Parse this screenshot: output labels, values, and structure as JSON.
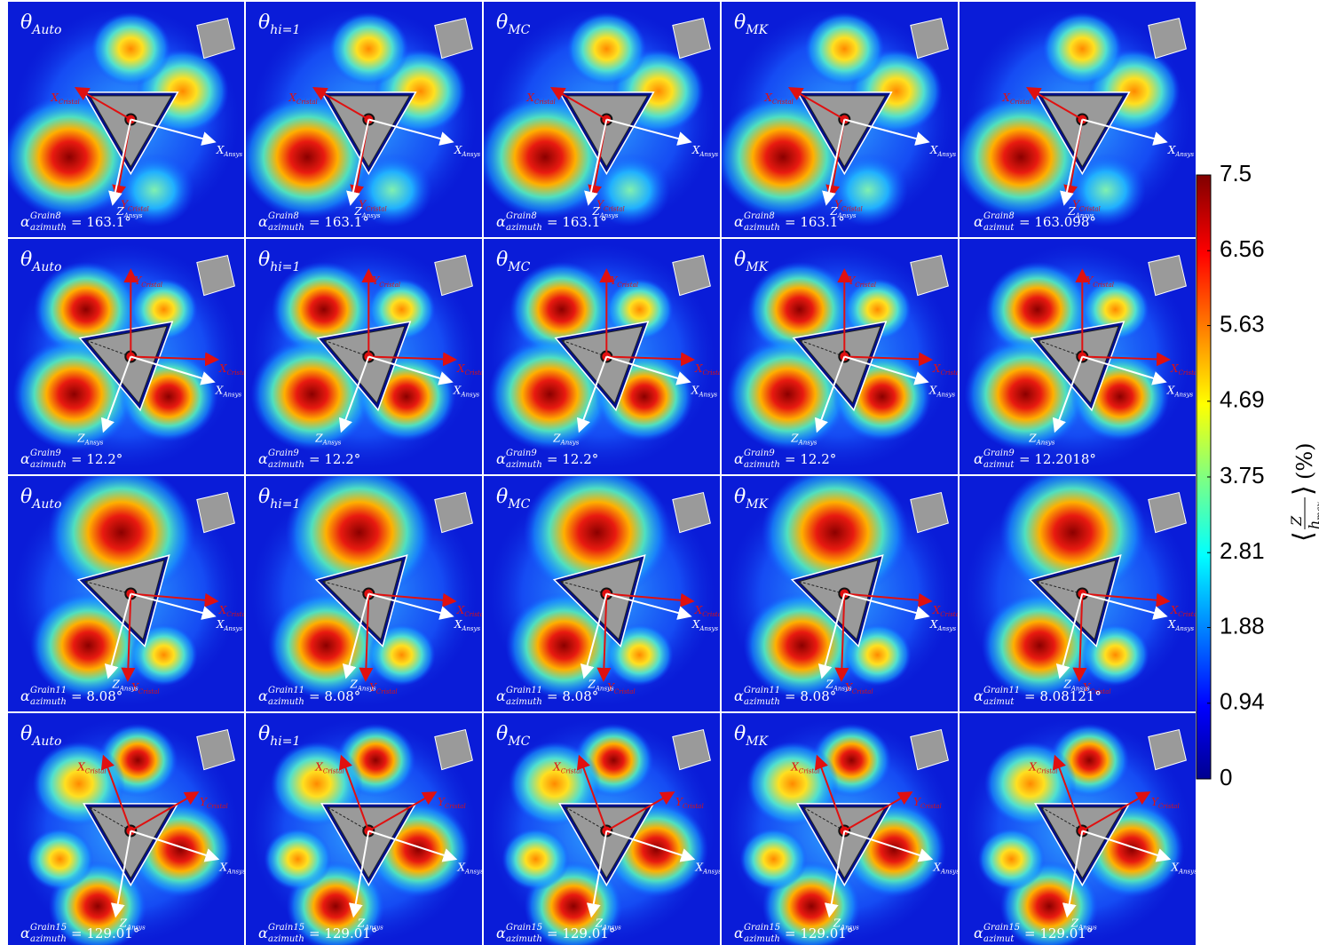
{
  "figure": {
    "rows": [
      {
        "panels": [
          {
            "method": {
              "symbol": "θ",
              "sub": "Auto"
            },
            "angle": {
              "symbol": "α",
              "sup": "Grain8",
              "sub": "azimuth",
              "value": "= 163.1°"
            }
          },
          {
            "method": {
              "symbol": "θ",
              "sub": "hi=1"
            },
            "angle": {
              "symbol": "α",
              "sup": "Grain8",
              "sub": "azimuth",
              "value": "= 163.1°"
            }
          },
          {
            "method": {
              "symbol": "θ",
              "sub": "MC"
            },
            "angle": {
              "symbol": "α",
              "sup": "Grain8",
              "sub": "azimuth",
              "value": "= 163.1°"
            }
          },
          {
            "method": {
              "symbol": "θ",
              "sub": "MK"
            },
            "angle": {
              "symbol": "α",
              "sup": "Grain8",
              "sub": "azimuth",
              "value": "= 163.1°"
            }
          },
          {
            "angle": {
              "symbol": "α",
              "sup": "Grain8",
              "sub": "azimut",
              "value": "= 163.098°"
            }
          }
        ],
        "arrows": [
          {
            "symbol": "X",
            "sub": "Cristal"
          },
          {
            "symbol": "X",
            "sub": "Ansys"
          },
          {
            "symbol": "Y",
            "sub": "Cristal"
          },
          {
            "symbol": "Z",
            "sub": "Ansys"
          }
        ]
      },
      {
        "panels": [
          {
            "method": {
              "symbol": "θ",
              "sub": "Auto"
            },
            "angle": {
              "symbol": "α",
              "sup": "Grain9",
              "sub": "azimuth",
              "value": "= 12.2°"
            }
          },
          {
            "method": {
              "symbol": "θ",
              "sub": "hi=1"
            },
            "angle": {
              "symbol": "α",
              "sup": "Grain9",
              "sub": "azimuth",
              "value": "= 12.2°"
            }
          },
          {
            "method": {
              "symbol": "θ",
              "sub": "MC"
            },
            "angle": {
              "symbol": "α",
              "sup": "Grain9",
              "sub": "azimuth",
              "value": "= 12.2°"
            }
          },
          {
            "method": {
              "symbol": "θ",
              "sub": "MK"
            },
            "angle": {
              "symbol": "α",
              "sup": "Grain9",
              "sub": "azimuth",
              "value": "= 12.2°"
            }
          },
          {
            "angle": {
              "symbol": "α",
              "sup": "Grain9",
              "sub": "azimut",
              "value": "= 12.2018°"
            }
          }
        ],
        "arrows": [
          {
            "symbol": "Y",
            "sub": "Cristal"
          },
          {
            "symbol": "X",
            "sub": "Cristal"
          },
          {
            "symbol": "X",
            "sub": "Ansys"
          },
          {
            "symbol": "Z",
            "sub": "Ansys"
          }
        ]
      },
      {
        "panels": [
          {
            "method": {
              "symbol": "θ",
              "sub": "Auto"
            },
            "angle": {
              "symbol": "α",
              "sup": "Grain11",
              "sub": "azimuth",
              "value": "= 8.08°"
            }
          },
          {
            "method": {
              "symbol": "θ",
              "sub": "hi=1"
            },
            "angle": {
              "symbol": "α",
              "sup": "Grain11",
              "sub": "azimuth",
              "value": "= 8.08°"
            }
          },
          {
            "method": {
              "symbol": "θ",
              "sub": "MC"
            },
            "angle": {
              "symbol": "α",
              "sup": "Grain11",
              "sub": "azimuth",
              "value": "= 8.08°"
            }
          },
          {
            "method": {
              "symbol": "θ",
              "sub": "MK"
            },
            "angle": {
              "symbol": "α",
              "sup": "Grain11",
              "sub": "azimuth",
              "value": "= 8.08°"
            }
          },
          {
            "angle": {
              "symbol": "α",
              "sup": "Grain11",
              "sub": "azimut",
              "value": "= 8.08121°"
            }
          }
        ],
        "arrows": [
          {
            "symbol": "X",
            "sub": "Cristal"
          },
          {
            "symbol": "X",
            "sub": "Ansys"
          },
          {
            "symbol": "Y",
            "sub": "Cristal"
          },
          {
            "symbol": "Z",
            "sub": "Ansys"
          }
        ]
      },
      {
        "panels": [
          {
            "method": {
              "symbol": "θ",
              "sub": "Auto"
            },
            "angle": {
              "symbol": "α",
              "sup": "Grain15",
              "sub": "azimuth",
              "value": "= 129.01°"
            }
          },
          {
            "method": {
              "symbol": "θ",
              "sub": "hi=1"
            },
            "angle": {
              "symbol": "α",
              "sup": "Grain15",
              "sub": "azimuth",
              "value": "= 129.01°"
            }
          },
          {
            "method": {
              "symbol": "θ",
              "sub": "MC"
            },
            "angle": {
              "symbol": "α",
              "sup": "Grain15",
              "sub": "azimuth",
              "value": "= 129.01°"
            }
          },
          {
            "method": {
              "symbol": "θ",
              "sub": "MK"
            },
            "angle": {
              "symbol": "α",
              "sup": "Grain15",
              "sub": "azimuth",
              "value": "= 129.01°"
            }
          },
          {
            "angle": {
              "symbol": "α",
              "sup": "Grain15",
              "sub": "azimut",
              "value": "= 129.01°"
            }
          }
        ],
        "arrows": [
          {
            "symbol": "X",
            "sub": "Cristal"
          },
          {
            "symbol": "Y",
            "sub": "Cristal"
          },
          {
            "symbol": "X",
            "sub": "Ansys"
          },
          {
            "symbol": "Z",
            "sub": "Ansys"
          }
        ]
      }
    ],
    "colorbar": {
      "lim": [
        0,
        7.5
      ],
      "ticks": [
        0,
        0.94,
        1.88,
        2.81,
        3.75,
        4.69,
        5.63,
        6.56,
        7.5
      ],
      "label": {
        "open": "⟨",
        "num": "Z",
        "den": "h",
        "den_sub": "max",
        "close": "⟩",
        "unit": "(%)"
      }
    }
  }
}
